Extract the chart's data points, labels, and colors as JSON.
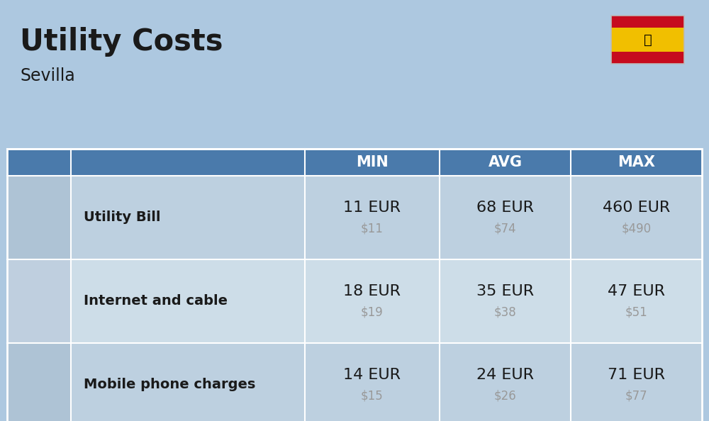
{
  "title": "Utility Costs",
  "subtitle": "Sevilla",
  "background_color": "#adc8e0",
  "header_color": "#4a7aab",
  "header_text_color": "#ffffff",
  "row_color_a": "#bdd0e0",
  "row_color_b": "#cddde8",
  "icon_col_color_a": "#aec3d5",
  "icon_col_color_b": "#bfcfdf",
  "text_color": "#1a1a1a",
  "usd_color": "#999999",
  "flag_red": "#c60b1e",
  "flag_yellow": "#f1bf00",
  "rows": [
    {
      "label": "Utility Bill",
      "min_eur": "11 EUR",
      "min_usd": "$11",
      "avg_eur": "68 EUR",
      "avg_usd": "$74",
      "max_eur": "460 EUR",
      "max_usd": "$490"
    },
    {
      "label": "Internet and cable",
      "min_eur": "18 EUR",
      "min_usd": "$19",
      "avg_eur": "35 EUR",
      "avg_usd": "$38",
      "max_eur": "47 EUR",
      "max_usd": "$51"
    },
    {
      "label": "Mobile phone charges",
      "min_eur": "14 EUR",
      "min_usd": "$15",
      "avg_eur": "24 EUR",
      "avg_usd": "$26",
      "max_eur": "71 EUR",
      "max_usd": "$77"
    }
  ],
  "title_fontsize": 30,
  "subtitle_fontsize": 17,
  "header_fontsize": 15,
  "label_fontsize": 14,
  "value_fontsize": 16,
  "usd_fontsize": 12,
  "fig_width": 10.0,
  "fig_height": 5.94,
  "dpi": 100
}
